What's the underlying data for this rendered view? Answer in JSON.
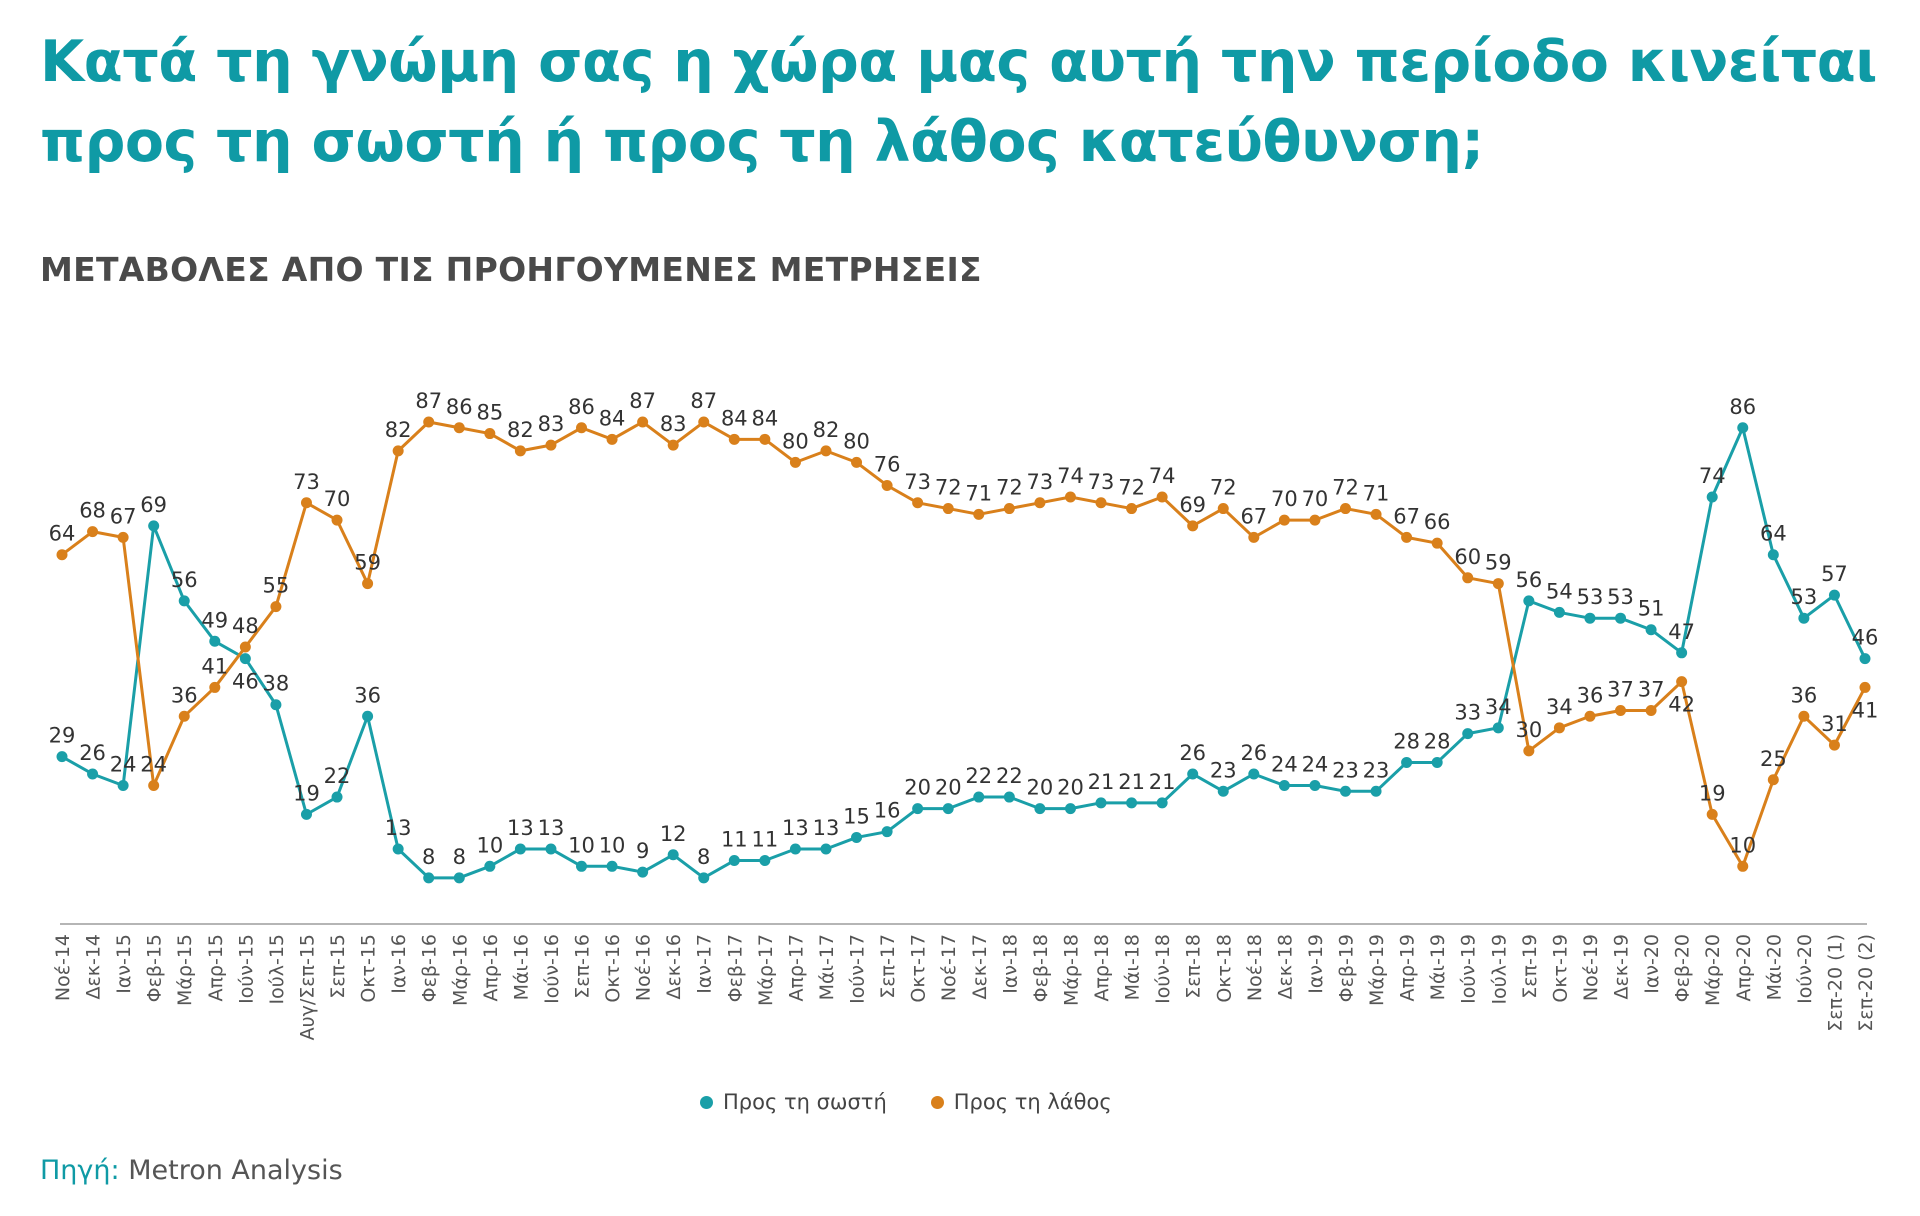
{
  "title": "Κατά τη γνώμη σας η χώρα μας αυτή την περίοδο κινείται προς τη σωστή ή προς τη λάθος κατεύθυνση;",
  "subtitle": "ΜΕΤΑΒΟΛΕΣ ΑΠΟ ΤΙΣ ΠΡΟΗΓΟΥΜΕΝΕΣ ΜΕΤΡΗΣΕΙΣ",
  "source": {
    "label": "Πηγή:",
    "value": "Metron Analysis"
  },
  "chart_data": {
    "type": "line",
    "ylim": [
      0,
      100
    ],
    "grid": false,
    "legend_position": "bottom",
    "data_labels": true,
    "categories": [
      "Νοέ-14",
      "Δεκ-14",
      "Ιαν-15",
      "Φεβ-15",
      "Μάρ-15",
      "Απρ-15",
      "Ιούν-15",
      "Ιούλ-15",
      "Αυγ/Σεπ-15",
      "Σεπ-15",
      "Οκτ-15",
      "Ιαν-16",
      "Φεβ-16",
      "Μάρ-16",
      "Απρ-16",
      "Μάι-16",
      "Ιούν-16",
      "Σεπ-16",
      "Οκτ-16",
      "Νοέ-16",
      "Δεκ-16",
      "Ιαν-17",
      "Φεβ-17",
      "Μάρ-17",
      "Απρ-17",
      "Μάι-17",
      "Ιούν-17",
      "Σεπ-17",
      "Οκτ-17",
      "Νοέ-17",
      "Δεκ-17",
      "Ιαν-18",
      "Φεβ-18",
      "Μάρ-18",
      "Απρ-18",
      "Μάι-18",
      "Ιούν-18",
      "Σεπ-18",
      "Οκτ-18",
      "Νοέ-18",
      "Δεκ-18",
      "Ιαν-19",
      "Φεβ-19",
      "Μάρ-19",
      "Απρ-19",
      "Μάι-19",
      "Ιούν-19",
      "Ιούλ-19",
      "Σεπ-19",
      "Οκτ-19",
      "Νοέ-19",
      "Δεκ-19",
      "Ιαν-20",
      "Φεβ-20",
      "Μάρ-20",
      "Απρ-20",
      "Μάι-20",
      "Ιούν-20",
      "Σεπ-20 (1)",
      "Σεπ-20 (2)"
    ],
    "series": [
      {
        "name": "Προς τη σωστή",
        "color": "#1a9fa8",
        "values": [
          29,
          26,
          24,
          69,
          56,
          49,
          46,
          38,
          19,
          22,
          36,
          13,
          8,
          8,
          10,
          13,
          13,
          10,
          10,
          9,
          12,
          8,
          11,
          11,
          13,
          13,
          15,
          16,
          20,
          20,
          22,
          22,
          20,
          20,
          21,
          21,
          21,
          26,
          23,
          26,
          24,
          24,
          23,
          23,
          28,
          28,
          33,
          34,
          56,
          54,
          53,
          53,
          51,
          47,
          74,
          86,
          64,
          53,
          57,
          46
        ]
      },
      {
        "name": "Προς τη λάθος",
        "color": "#d9801b",
        "values": [
          64,
          68,
          67,
          24,
          36,
          41,
          48,
          55,
          73,
          70,
          59,
          82,
          87,
          86,
          85,
          82,
          83,
          86,
          84,
          87,
          83,
          87,
          84,
          84,
          80,
          82,
          80,
          76,
          73,
          72,
          71,
          72,
          73,
          74,
          73,
          72,
          74,
          69,
          72,
          67,
          70,
          70,
          72,
          71,
          67,
          66,
          60,
          59,
          30,
          34,
          36,
          37,
          37,
          42,
          19,
          10,
          25,
          36,
          31,
          41
        ]
      }
    ]
  }
}
